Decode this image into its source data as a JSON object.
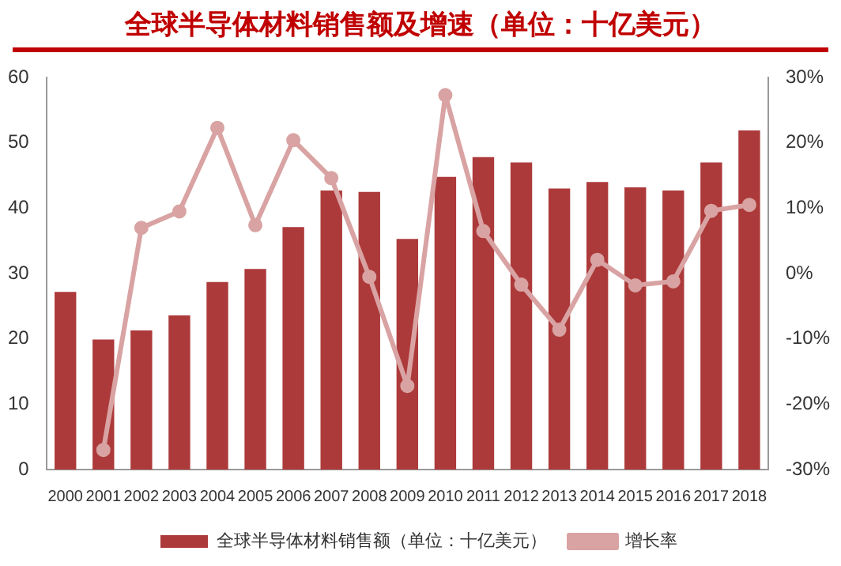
{
  "chart_data": {
    "type": "bar",
    "title": "全球半导体材料销售额及增速（单位：十亿美元）",
    "categories": [
      "2000",
      "2001",
      "2002",
      "2003",
      "2004",
      "2005",
      "2006",
      "2007",
      "2008",
      "2009",
      "2010",
      "2011",
      "2012",
      "2013",
      "2014",
      "2015",
      "2016",
      "2017",
      "2018"
    ],
    "series": [
      {
        "name": "全球半导体材料销售额（单位：十亿美元）",
        "color": "#ad3a3a",
        "values": [
          27.2,
          19.9,
          21.3,
          23.6,
          28.7,
          30.7,
          37.1,
          42.7,
          42.5,
          35.3,
          44.8,
          47.8,
          47,
          43,
          44,
          43.2,
          42.7,
          47,
          51.9
        ]
      },
      {
        "name": "增长率",
        "type": "line",
        "axis": "y2",
        "color": "#d9a3a3",
        "values": [
          null,
          -27,
          7,
          9.5,
          22.3,
          7.4,
          20.4,
          14.6,
          -0.5,
          -17.2,
          27.3,
          6.5,
          -1.7,
          -8.6,
          2.1,
          -1.8,
          -1.2,
          9.6,
          10.5
        ]
      }
    ],
    "ylim": [
      0,
      60
    ],
    "yticks": [
      0,
      10,
      20,
      30,
      40,
      50,
      60
    ],
    "y2lim": [
      -30,
      30
    ],
    "y2ticks": [
      {
        "value": -30,
        "label": "-30%"
      },
      {
        "value": -20,
        "label": "-20%"
      },
      {
        "value": -10,
        "label": "-10%"
      },
      {
        "value": 0,
        "label": "0%"
      },
      {
        "value": 10,
        "label": "10%"
      },
      {
        "value": 20,
        "label": "20%"
      },
      {
        "value": 30,
        "label": "30%"
      }
    ],
    "grid": false,
    "legend": "bottom",
    "marker": "circle"
  }
}
